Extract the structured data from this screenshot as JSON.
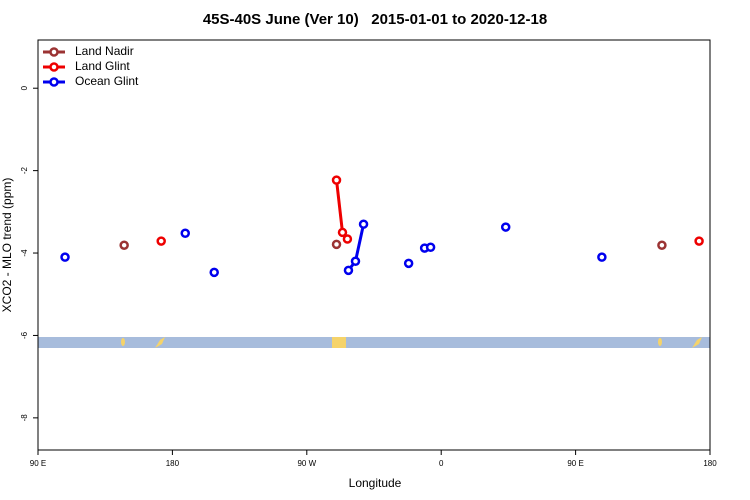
{
  "chart_data": {
    "type": "line",
    "title": "45S-40S June (Ver 10)   2015-01-01 to 2020-12-18",
    "x_label": "Longitude",
    "y_label": "XCO2 - MLO trend (ppm)",
    "xlim": [
      90,
      540
    ],
    "ylim": [
      -8.78,
      1.17
    ],
    "xticks": [
      {
        "value": 90,
        "label": "90 E"
      },
      180,
      {
        "value": 270,
        "label": "90 W"
      },
      {
        "value": 360,
        "label": "0"
      },
      {
        "value": 450,
        "label": "90 E"
      },
      {
        "value": 540,
        "label": "180"
      }
    ],
    "yticks": [
      0,
      -2,
      -4,
      -6,
      -8
    ],
    "legend": "top-left",
    "series": [
      {
        "name": "Land Nadir",
        "color": "#9b3333",
        "x": [
          147.7,
          null,
          289.9,
          null,
          507.8
        ],
        "values": [
          -3.81,
          null,
          -3.79,
          null,
          -3.81
        ]
      },
      {
        "name": "Land Glint",
        "color": "#ee0000",
        "x": [
          172.5,
          null,
          289.9,
          293.9,
          297.2,
          null,
          532.7
        ],
        "values": [
          -3.71,
          null,
          -2.23,
          -3.5,
          -3.66,
          null,
          -3.71
        ]
      },
      {
        "name": "Ocean Glint",
        "color": "#0000ee",
        "x": [
          108.1,
          null,
          188.6,
          null,
          208.0,
          null,
          297.9,
          302.6,
          308.0,
          null,
          338.2,
          null,
          348.9,
          null,
          352.9,
          null,
          403.2,
          null,
          467.6
        ],
        "values": [
          -4.1,
          null,
          -3.52,
          null,
          -4.47,
          null,
          -4.42,
          -4.2,
          -3.3,
          null,
          -4.25,
          null,
          -3.88,
          null,
          -3.86,
          null,
          -3.37,
          null,
          -4.1
        ]
      }
    ]
  }
}
